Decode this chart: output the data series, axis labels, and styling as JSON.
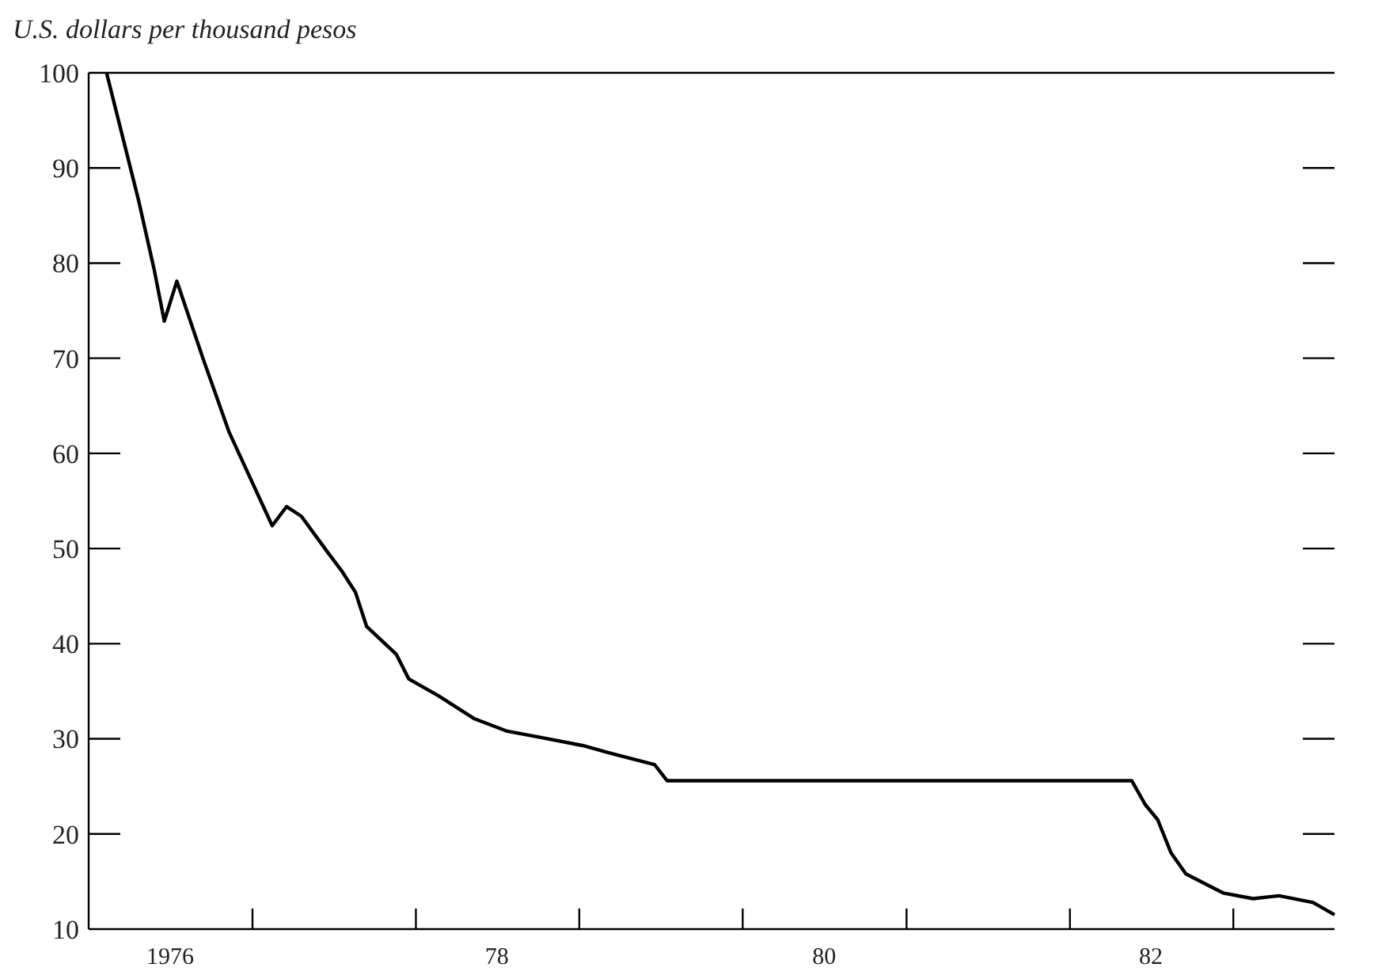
{
  "chart_data": {
    "type": "line",
    "ylabel": "U.S. dollars per thousand pesos",
    "x": [
      "1976-02-10",
      "1976-04-22",
      "1976-05-26",
      "1976-06-18",
      "1976-07-16",
      "1976-09-13",
      "1976-11-10",
      "1977-02-14",
      "1977-03-18",
      "1977-04-20",
      "1977-06-18",
      "1977-07-20",
      "1977-08-19",
      "1977-09-13",
      "1977-11-18",
      "1977-12-16",
      "1978-02-21",
      "1978-05-12",
      "1978-07-24",
      "1978-10-12",
      "1979-01-08",
      "1979-03-26",
      "1979-06-18",
      "1979-07-16",
      "1982-05-19",
      "1982-06-18",
      "1982-07-16",
      "1982-08-15",
      "1982-09-17",
      "1982-12-09",
      "1983-02-14",
      "1983-04-13",
      "1983-06-28",
      "1983-08-15"
    ],
    "series": [
      {
        "color": "#000000",
        "values": [
          100,
          86.5,
          79.4,
          73.9,
          78.1,
          69.9,
          62.2,
          52.4,
          54.4,
          53.4,
          49.6,
          47.6,
          45.4,
          41.8,
          38.9,
          36.3,
          34.5,
          32.1,
          30.8,
          30.1,
          29.3,
          28.3,
          27.3,
          25.6,
          25.6,
          23.1,
          21.5,
          18,
          15.8,
          13.8,
          13.2,
          13.5,
          12.8,
          11.5
        ]
      }
    ],
    "xlim": [
      "1976-01-01",
      "1983-08-15"
    ],
    "xticks": [
      {
        "value": "1976-07-01",
        "label": "1976"
      },
      {
        "value": "1977-01-01",
        "label": null
      },
      {
        "value": "1978-01-01",
        "label": null
      },
      {
        "value": "1978-07-01",
        "label": "78"
      },
      {
        "value": "1979-01-01",
        "label": null
      },
      {
        "value": "1980-01-01",
        "label": null
      },
      {
        "value": "1980-07-01",
        "label": "80"
      },
      {
        "value": "1981-01-01",
        "label": null
      },
      {
        "value": "1982-01-01",
        "label": null
      },
      {
        "value": "1982-07-01",
        "label": "82"
      },
      {
        "value": "1983-01-01",
        "label": null
      }
    ],
    "ylim": [
      10,
      100
    ],
    "yticks": [
      10,
      20,
      30,
      40,
      50,
      60,
      70,
      80,
      90,
      100
    ],
    "grid": false,
    "marker": "none",
    "line_style": "solid"
  }
}
